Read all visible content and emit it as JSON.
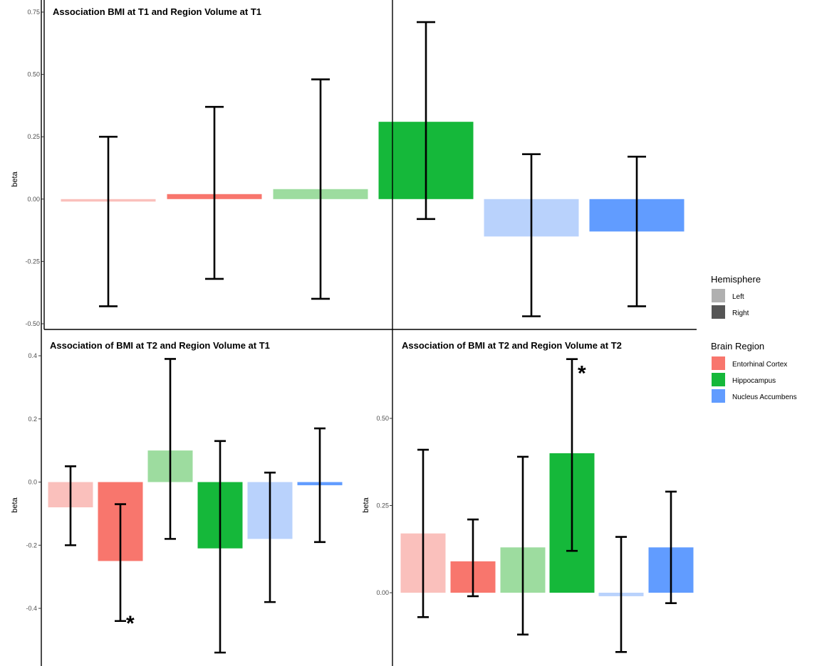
{
  "chart_data": [
    {
      "type": "bar",
      "title": "Association BMI at T1 and Region Volume at T1",
      "ylabel": "beta",
      "xlabel": "",
      "ylim": [
        -0.5,
        0.75
      ],
      "yticks": [
        "-0.50",
        "-0.25",
        "0.00",
        "0.25",
        "0.50",
        "0.75"
      ],
      "grid": false,
      "bars": [
        {
          "region": "Entorhinal Cortex",
          "hemisphere": "Left",
          "value": -0.01,
          "ci_low": -0.43,
          "ci_high": 0.25,
          "significant": false
        },
        {
          "region": "Entorhinal Cortex",
          "hemisphere": "Right",
          "value": 0.02,
          "ci_low": -0.32,
          "ci_high": 0.37,
          "significant": false
        },
        {
          "region": "Hippocampus",
          "hemisphere": "Left",
          "value": 0.04,
          "ci_low": -0.4,
          "ci_high": 0.48,
          "significant": false
        },
        {
          "region": "Hippocampus",
          "hemisphere": "Right",
          "value": 0.31,
          "ci_low": -0.08,
          "ci_high": 0.71,
          "significant": false
        },
        {
          "region": "Nucleus Accumbens",
          "hemisphere": "Left",
          "value": -0.15,
          "ci_low": -0.47,
          "ci_high": 0.18,
          "significant": false
        },
        {
          "region": "Nucleus Accumbens",
          "hemisphere": "Right",
          "value": -0.13,
          "ci_low": -0.43,
          "ci_high": 0.17,
          "significant": false
        }
      ]
    },
    {
      "type": "bar",
      "title": "Association of BMI at T2 and Region Volume at T1",
      "ylabel": "beta",
      "xlabel": "",
      "ylim": [
        -0.6,
        0.42
      ],
      "yticks": [
        "-0.4",
        "-0.2",
        "0.0",
        "0.2",
        "0.4"
      ],
      "grid": false,
      "bars": [
        {
          "region": "Entorhinal Cortex",
          "hemisphere": "Left",
          "value": -0.08,
          "ci_low": -0.2,
          "ci_high": 0.05,
          "significant": false
        },
        {
          "region": "Entorhinal Cortex",
          "hemisphere": "Right",
          "value": -0.25,
          "ci_low": -0.44,
          "ci_high": -0.07,
          "significant": true
        },
        {
          "region": "Hippocampus",
          "hemisphere": "Left",
          "value": 0.1,
          "ci_low": -0.18,
          "ci_high": 0.39,
          "significant": false
        },
        {
          "region": "Hippocampus",
          "hemisphere": "Right",
          "value": -0.21,
          "ci_low": -0.54,
          "ci_high": 0.13,
          "significant": false
        },
        {
          "region": "Nucleus Accumbens",
          "hemisphere": "Left",
          "value": -0.18,
          "ci_low": -0.38,
          "ci_high": 0.03,
          "significant": false
        },
        {
          "region": "Nucleus Accumbens",
          "hemisphere": "Right",
          "value": -0.01,
          "ci_low": -0.19,
          "ci_high": 0.17,
          "significant": false
        }
      ]
    },
    {
      "type": "bar",
      "title": "Association of BMI at T2 and Region Volume at T2",
      "ylabel": "beta",
      "xlabel": "",
      "ylim": [
        -0.2,
        0.7
      ],
      "yticks": [
        "0.00",
        "0.25",
        "0.50"
      ],
      "grid": false,
      "bars": [
        {
          "region": "Entorhinal Cortex",
          "hemisphere": "Left",
          "value": 0.17,
          "ci_low": -0.07,
          "ci_high": 0.41,
          "significant": false
        },
        {
          "region": "Entorhinal Cortex",
          "hemisphere": "Right",
          "value": 0.09,
          "ci_low": -0.01,
          "ci_high": 0.21,
          "significant": false
        },
        {
          "region": "Hippocampus",
          "hemisphere": "Left",
          "value": 0.13,
          "ci_low": -0.12,
          "ci_high": 0.39,
          "significant": false
        },
        {
          "region": "Hippocampus",
          "hemisphere": "Right",
          "value": 0.4,
          "ci_low": 0.12,
          "ci_high": 0.67,
          "significant": true
        },
        {
          "region": "Nucleus Accumbens",
          "hemisphere": "Left",
          "value": -0.01,
          "ci_low": -0.17,
          "ci_high": 0.16,
          "significant": false
        },
        {
          "region": "Nucleus Accumbens",
          "hemisphere": "Right",
          "value": 0.13,
          "ci_low": -0.03,
          "ci_high": 0.29,
          "significant": false
        }
      ]
    }
  ],
  "significance_marker": "*",
  "legend": {
    "hemisphere_title": "Hemisphere",
    "hemisphere_items": [
      {
        "label": "Left",
        "color": "#b0b0b0"
      },
      {
        "label": "Right",
        "color": "#555555"
      }
    ],
    "region_title": "Brain Region",
    "region_items": [
      {
        "label": "Entorhinal Cortex",
        "color": "#f8766d"
      },
      {
        "label": "Hippocampus",
        "color": "#15b83a"
      },
      {
        "label": "Nucleus Accumbens",
        "color": "#619cff"
      }
    ],
    "placement": "right"
  },
  "colors": {
    "Entorhinal Cortex": {
      "Left": "#fac0bc",
      "Right": "#f8766d"
    },
    "Hippocampus": {
      "Left": "#9ddc9f",
      "Right": "#15b83a"
    },
    "Nucleus Accumbens": {
      "Left": "#b9d2fc",
      "Right": "#619cff"
    }
  }
}
